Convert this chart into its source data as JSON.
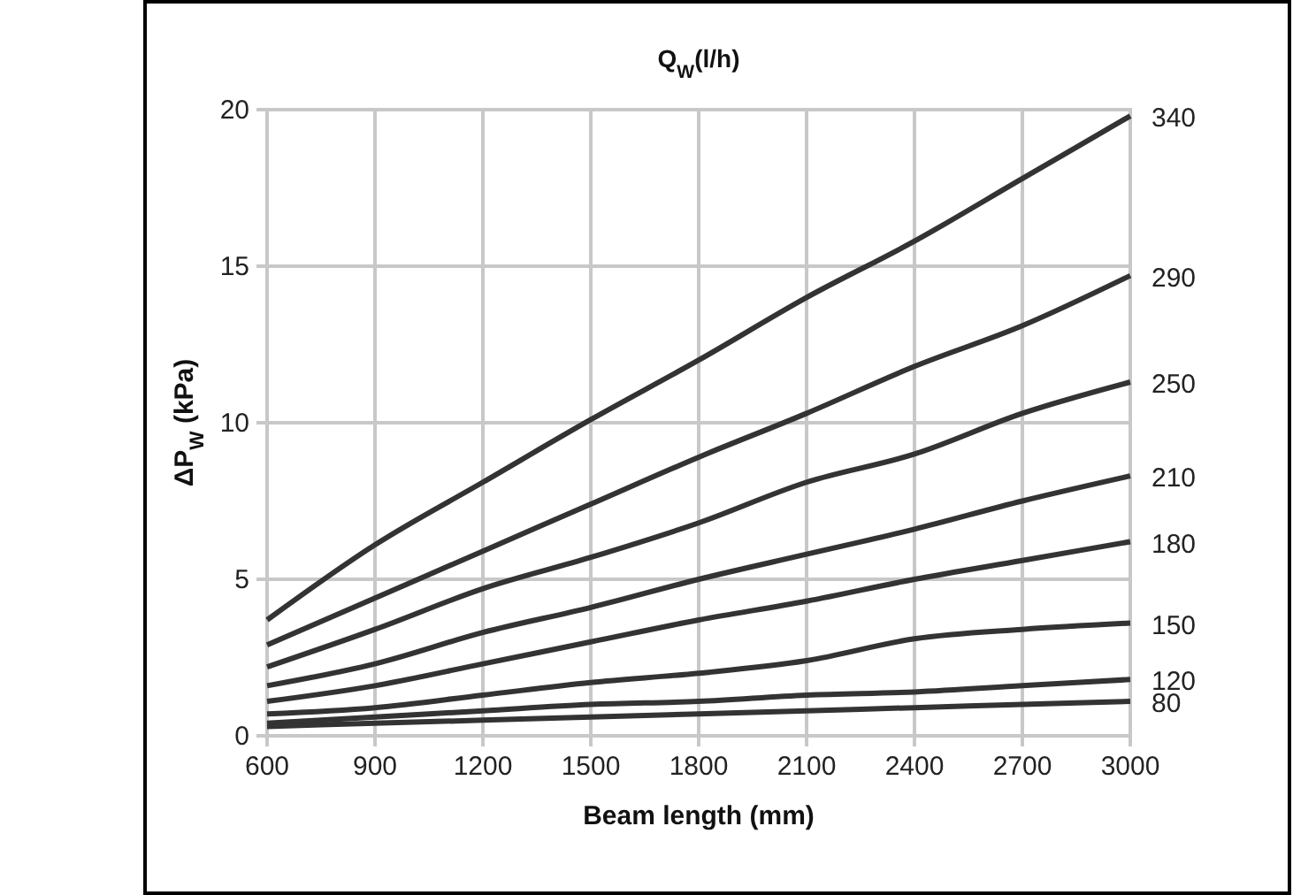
{
  "chart_data": {
    "type": "line",
    "title": "Q$_{W}$(l/h)",
    "xlabel": "Beam length (mm)",
    "ylabel": "ΔP$_{W}$ (kPa)",
    "x": [
      600,
      900,
      1200,
      1500,
      1800,
      2100,
      2400,
      2700,
      3000
    ],
    "xlim": [
      600,
      3000
    ],
    "xticks": [
      600,
      900,
      1200,
      1500,
      1800,
      2100,
      2400,
      2700,
      3000
    ],
    "ylim": [
      0,
      20
    ],
    "yticks": [
      0,
      5,
      10,
      15,
      20
    ],
    "grid": true,
    "legend": false,
    "marker": "none",
    "line_style": "solid",
    "series": [
      {
        "name": "340",
        "color": "#333333",
        "values": [
          3.7,
          6.1,
          8.1,
          10.1,
          12.0,
          14.0,
          15.8,
          17.8,
          19.8
        ]
      },
      {
        "name": "290",
        "color": "#333333",
        "values": [
          2.9,
          4.4,
          5.9,
          7.4,
          8.9,
          10.3,
          11.8,
          13.1,
          14.7
        ]
      },
      {
        "name": "250",
        "color": "#333333",
        "values": [
          2.2,
          3.4,
          4.7,
          5.7,
          6.8,
          8.1,
          9.0,
          10.3,
          11.3
        ]
      },
      {
        "name": "210",
        "color": "#333333",
        "values": [
          1.6,
          2.3,
          3.3,
          4.1,
          5.0,
          5.8,
          6.6,
          7.5,
          8.3
        ]
      },
      {
        "name": "180",
        "color": "#333333",
        "values": [
          1.1,
          1.6,
          2.3,
          3.0,
          3.7,
          4.3,
          5.0,
          5.6,
          6.2
        ]
      },
      {
        "name": "150",
        "color": "#333333",
        "values": [
          0.7,
          0.9,
          1.3,
          1.7,
          2.0,
          2.4,
          3.1,
          3.4,
          3.6
        ]
      },
      {
        "name": "120",
        "color": "#333333",
        "values": [
          0.4,
          0.6,
          0.8,
          1.0,
          1.1,
          1.3,
          1.4,
          1.6,
          1.8
        ]
      },
      {
        "name": "80",
        "color": "#333333",
        "values": [
          0.3,
          0.4,
          0.5,
          0.6,
          0.7,
          0.8,
          0.9,
          1.0,
          1.1
        ]
      }
    ]
  }
}
